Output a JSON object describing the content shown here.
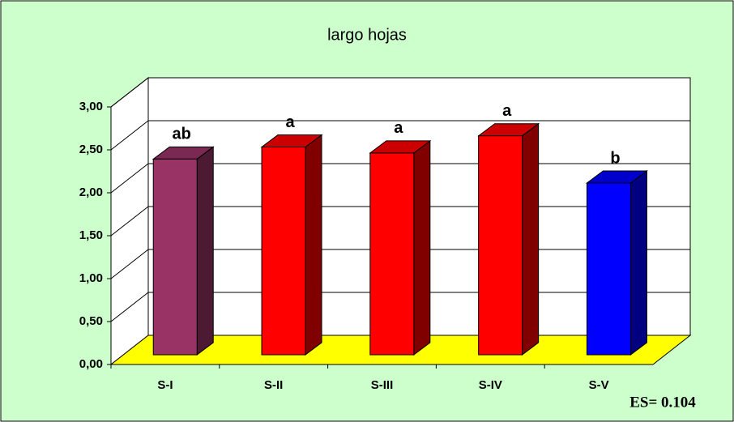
{
  "chart_data": {
    "type": "bar3d",
    "title": "largo hojas",
    "categories": [
      "S-I",
      "S-II",
      "S-III",
      "S-IV",
      "S-V"
    ],
    "values": [
      2.28,
      2.42,
      2.35,
      2.55,
      2.0
    ],
    "colors": [
      "#993366",
      "#ff0000",
      "#ff0000",
      "#ff0000",
      "#0000ff"
    ],
    "letters": [
      "ab",
      "a",
      "a",
      "a",
      "b"
    ],
    "ylim": [
      0,
      3
    ],
    "yticks": [
      {
        "value": 0,
        "label": "0,00"
      },
      {
        "value": 0.5,
        "label": "0,50"
      },
      {
        "value": 1,
        "label": "1,00"
      },
      {
        "value": 1.5,
        "label": "1,50"
      },
      {
        "value": 2,
        "label": "2,00"
      },
      {
        "value": 2.5,
        "label": "2,50"
      },
      {
        "value": 3,
        "label": "3,00"
      }
    ],
    "grid": true,
    "annotation": "ES= 0.104"
  }
}
